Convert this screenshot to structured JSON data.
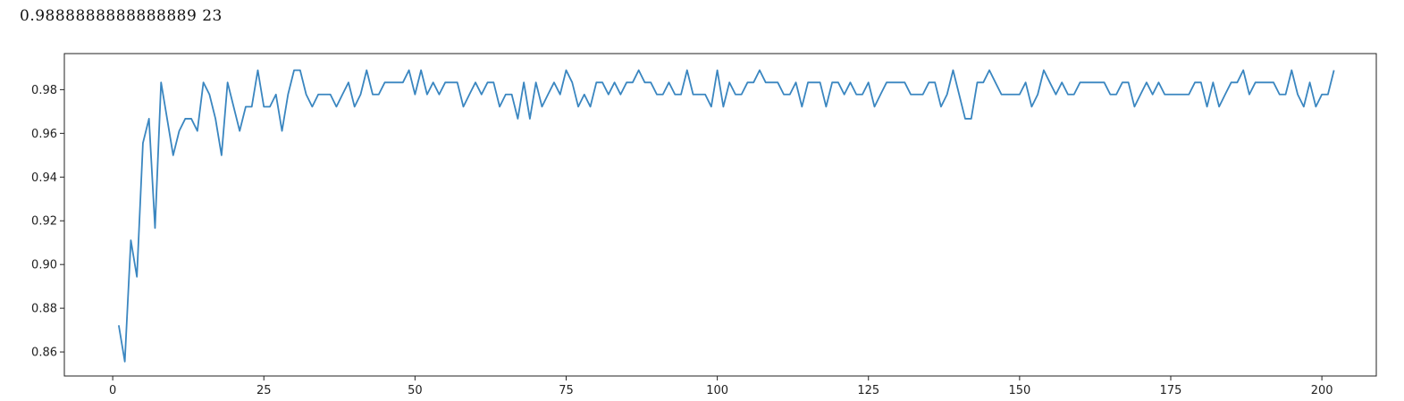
{
  "output": {
    "best_score": "0.9888888888888889",
    "best_k": "23"
  },
  "chart_data": {
    "type": "line",
    "title": "",
    "xlabel": "",
    "ylabel": "",
    "xlim": [
      -8,
      209
    ],
    "ylim": [
      0.849,
      0.9965
    ],
    "xticks": [
      0,
      25,
      50,
      75,
      100,
      125,
      150,
      175,
      200
    ],
    "yticks": [
      0.86,
      0.88,
      0.9,
      0.92,
      0.94,
      0.96,
      0.98
    ],
    "grid": false,
    "legend": "none",
    "line_color": "#3a86c0",
    "series": [
      {
        "x_start": 1,
        "x_step": 1,
        "values": [
          0.8722,
          0.8556,
          0.9111,
          0.8944,
          0.9556,
          0.9667,
          0.9167,
          0.9833,
          0.9667,
          0.95,
          0.9611,
          0.9667,
          0.9667,
          0.9611,
          0.9833,
          0.9778,
          0.9667,
          0.95,
          0.9833,
          0.9722,
          0.9611,
          0.9722,
          0.9722,
          0.9889,
          0.9722,
          0.9722,
          0.9778,
          0.9611,
          0.9778,
          0.9889,
          0.9889,
          0.9778,
          0.9722,
          0.9778,
          0.9778,
          0.9778,
          0.9722,
          0.9778,
          0.9833,
          0.9722,
          0.9778,
          0.9889,
          0.9778,
          0.9778,
          0.9833,
          0.9833,
          0.9833,
          0.9833,
          0.9889,
          0.9778,
          0.9889,
          0.9778,
          0.9833,
          0.9778,
          0.9833,
          0.9833,
          0.9833,
          0.9722,
          0.9778,
          0.9833,
          0.9778,
          0.9833,
          0.9833,
          0.9722,
          0.9778,
          0.9778,
          0.9667,
          0.9833,
          0.9667,
          0.9833,
          0.9722,
          0.9778,
          0.9833,
          0.9778,
          0.9889,
          0.9833,
          0.9722,
          0.9778,
          0.9722,
          0.9833,
          0.9833,
          0.9778,
          0.9833,
          0.9778,
          0.9833,
          0.9833,
          0.9889,
          0.9833,
          0.9833,
          0.9778,
          0.9778,
          0.9833,
          0.9778,
          0.9778,
          0.9889,
          0.9778,
          0.9778,
          0.9778,
          0.9722,
          0.9889,
          0.9722,
          0.9833,
          0.9778,
          0.9778,
          0.9833,
          0.9833,
          0.9889,
          0.9833,
          0.9833,
          0.9833,
          0.9778,
          0.9778,
          0.9833,
          0.9722,
          0.9833,
          0.9833,
          0.9833,
          0.9722,
          0.9833,
          0.9833,
          0.9778,
          0.9833,
          0.9778,
          0.9778,
          0.9833,
          0.9722,
          0.9778,
          0.9833,
          0.9833,
          0.9833,
          0.9833,
          0.9778,
          0.9778,
          0.9778,
          0.9833,
          0.9833,
          0.9722,
          0.9778,
          0.9889,
          0.9778,
          0.9667,
          0.9667,
          0.9833,
          0.9833,
          0.9889,
          0.9833,
          0.9778,
          0.9778,
          0.9778,
          0.9778,
          0.9833,
          0.9722,
          0.9778,
          0.9889,
          0.9833,
          0.9778,
          0.9833,
          0.9778,
          0.9778,
          0.9833,
          0.9833,
          0.9833,
          0.9833,
          0.9833,
          0.9778,
          0.9778,
          0.9833,
          0.9833,
          0.9722,
          0.9778,
          0.9833,
          0.9778,
          0.9833,
          0.9778,
          0.9778,
          0.9778,
          0.9778,
          0.9778,
          0.9833,
          0.9833,
          0.9722,
          0.9833,
          0.9722,
          0.9778,
          0.9833,
          0.9833,
          0.9889,
          0.9778,
          0.9833,
          0.9833,
          0.9833,
          0.9833,
          0.9778,
          0.9778,
          0.9889,
          0.9778,
          0.9722,
          0.9833,
          0.9722,
          0.9778,
          0.9778,
          0.9889
        ]
      }
    ]
  }
}
